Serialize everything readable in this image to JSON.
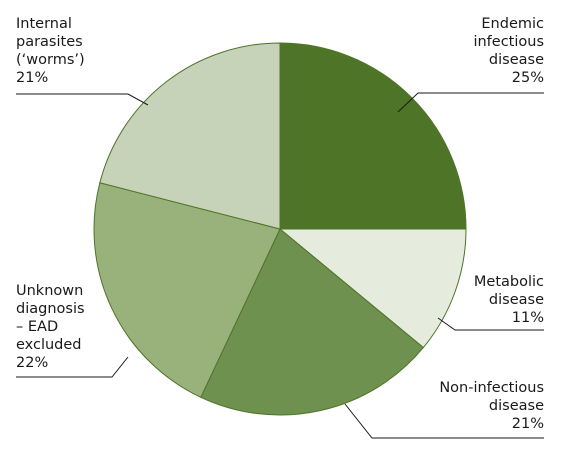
{
  "chart_data": {
    "type": "pie",
    "title": "",
    "slices": [
      {
        "lines": [
          "Endemic",
          "infectious",
          "disease"
        ],
        "percent_label": "25%",
        "value": 25,
        "color": "#4e7428"
      },
      {
        "lines": [
          "Metabolic",
          "disease"
        ],
        "percent_label": "11%",
        "value": 11,
        "color": "#e6ecdd"
      },
      {
        "lines": [
          "Non-infectious",
          "disease"
        ],
        "percent_label": "21%",
        "value": 21,
        "color": "#6e9150"
      },
      {
        "lines": [
          "Unknown",
          "diagnosis",
          "– EAD",
          "excluded"
        ],
        "percent_label": "22%",
        "value": 22,
        "color": "#99b27c"
      },
      {
        "lines": [
          "Internal",
          "parasites",
          "(‘worms’)"
        ],
        "percent_label": "21%",
        "value": 21,
        "color": "#c6d3b9"
      }
    ],
    "start": "12 o'clock",
    "direction": "clockwise",
    "slice_border_color": "#4e7428",
    "leader_line_color": "#1a1a1a"
  }
}
